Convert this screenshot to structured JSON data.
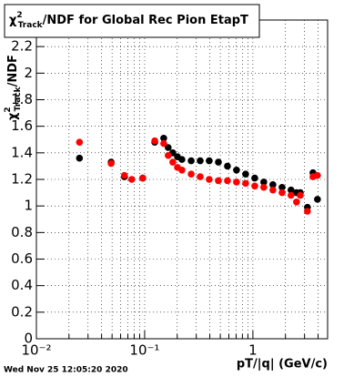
{
  "chart_data": {
    "type": "scatter",
    "title": [
      "χ",
      "2",
      "Track",
      "/NDF for Global Rec Pion EtapT"
    ],
    "ylabel": [
      "χ",
      "2",
      "Track",
      "/NDF"
    ],
    "xlabel": "pT/|q| (GeV/c)",
    "footer": "Wed Nov 25 12:05:20 2020",
    "log_x": true,
    "grid": true,
    "xlim": [
      0.01,
      4.9
    ],
    "ylim": [
      0,
      2.4
    ],
    "xticks": [
      {
        "value": 0.01,
        "label": "10⁻²"
      },
      {
        "value": 0.1,
        "label": "10⁻¹"
      },
      1
    ],
    "xminorticks": [
      0.02,
      0.03,
      0.04,
      0.05,
      0.06,
      0.07,
      0.08,
      0.09,
      0.2,
      0.3,
      0.4,
      0.5,
      0.6,
      0.7,
      0.8,
      0.9,
      2,
      3,
      4
    ],
    "yticks": [
      0,
      0.2,
      0.4,
      0.6,
      0.8,
      1,
      1.2,
      1.4,
      1.6,
      1.8,
      2,
      2.2
    ],
    "series": [
      {
        "color": "#000000",
        "x": [
          0.025,
          0.049,
          0.065,
          0.096,
          0.124,
          0.15,
          0.165,
          0.182,
          0.201,
          0.221,
          0.269,
          0.326,
          0.395,
          0.48,
          0.582,
          0.706,
          0.857,
          1.04,
          1.26,
          1.53,
          1.86,
          2.25,
          2.53,
          2.74,
          3.19,
          3.59,
          3.95
        ],
        "values": [
          1.36,
          1.33,
          1.22,
          1.21,
          1.48,
          1.51,
          1.44,
          1.4,
          1.37,
          1.35,
          1.34,
          1.34,
          1.34,
          1.33,
          1.3,
          1.27,
          1.24,
          1.21,
          1.18,
          1.16,
          1.14,
          1.12,
          1.1,
          1.1,
          0.99,
          1.25,
          1.05
        ]
      },
      {
        "color": "#ff0000",
        "x": [
          0.025,
          0.049,
          0.065,
          0.076,
          0.096,
          0.124,
          0.15,
          0.165,
          0.182,
          0.201,
          0.221,
          0.269,
          0.326,
          0.395,
          0.48,
          0.582,
          0.706,
          0.857,
          1.04,
          1.26,
          1.53,
          1.86,
          2.25,
          2.53,
          2.74,
          3.19,
          3.59,
          3.95
        ],
        "values": [
          1.48,
          1.32,
          1.23,
          1.2,
          1.21,
          1.49,
          1.47,
          1.38,
          1.33,
          1.29,
          1.27,
          1.24,
          1.22,
          1.2,
          1.19,
          1.19,
          1.18,
          1.17,
          1.15,
          1.14,
          1.12,
          1.1,
          1.08,
          1.03,
          1.08,
          0.96,
          1.22,
          1.23
        ]
      }
    ]
  }
}
